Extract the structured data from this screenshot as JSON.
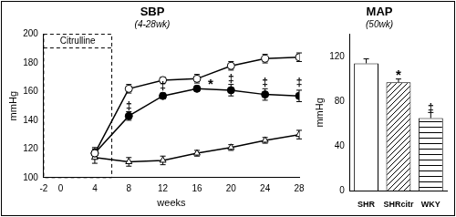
{
  "chart_data": [
    {
      "type": "line",
      "title": "SBP",
      "subtitle": "(4-28wk)",
      "x_label": "weeks",
      "y_label": "mmHg",
      "x": [
        4,
        8,
        12,
        16,
        20,
        24,
        28
      ],
      "series": [
        {
          "color": "#000000",
          "marker": "open_circle",
          "values": [
            117,
            162,
            168,
            169,
            178,
            183,
            184
          ],
          "errors": [
            4,
            3,
            2,
            3,
            3,
            3,
            3
          ]
        },
        {
          "color": "#000000",
          "marker": "filled_circle",
          "values": [
            117,
            143,
            157,
            162,
            161,
            158,
            157
          ],
          "errors": [
            3,
            3,
            2,
            2,
            4,
            4,
            4
          ]
        },
        {
          "color": "#000000",
          "marker": "open_triangle",
          "values": [
            114,
            111,
            112,
            117,
            121,
            126,
            130
          ],
          "errors": [
            4,
            3,
            3,
            2,
            2,
            2,
            3
          ]
        }
      ],
      "xlim": [
        -2,
        28
      ],
      "xticks": [
        -2,
        0,
        4,
        8,
        12,
        16,
        20,
        24,
        28
      ],
      "ylim": [
        100,
        200
      ],
      "yticks": [
        100,
        120,
        140,
        160,
        180,
        200
      ],
      "grid": false,
      "region": {
        "label": "Citrulline",
        "x": [
          -2,
          6
        ]
      },
      "annotations": [
        {
          "text": "‡",
          "x": 8,
          "y": 150
        },
        {
          "text": "‡",
          "x": 12,
          "y": 164
        },
        {
          "text": "*",
          "x": 17.6,
          "y": 165
        },
        {
          "text": "‡",
          "x": 20,
          "y": 169
        },
        {
          "text": "‡",
          "x": 24,
          "y": 166
        },
        {
          "text": "‡",
          "x": 28,
          "y": 166
        }
      ]
    },
    {
      "type": "bar",
      "title": "MAP",
      "subtitle": "(50wk)",
      "y_label": "mmHg",
      "categories": [
        "SHR",
        "SHRcitr",
        "WKY"
      ],
      "values": [
        114,
        97,
        65
      ],
      "errors": [
        4,
        3,
        5
      ],
      "colors": [
        "#ffffff",
        "#ffffff",
        "#ffffff"
      ],
      "ylim": [
        0,
        140
      ],
      "yticks": [
        0,
        40,
        80,
        120
      ],
      "grid": false,
      "annotations": [
        {
          "text": "*",
          "x": "SHRcitr",
          "y": 103
        },
        {
          "text": "‡",
          "x": "WKY",
          "y": 74
        }
      ]
    }
  ]
}
